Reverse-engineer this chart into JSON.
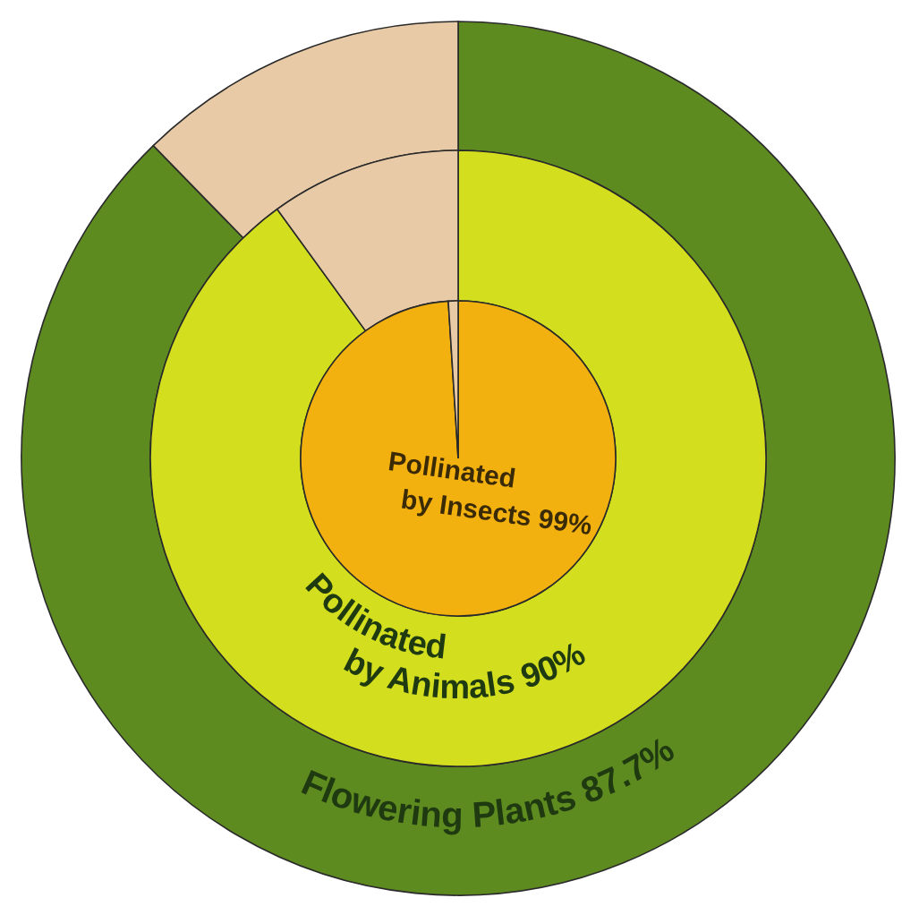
{
  "chart_data": [
    {
      "type": "donut",
      "categories": [
        "Flowering Plants",
        null
      ],
      "values": [
        87.7,
        12.3
      ],
      "colors": [
        "#5e8b1f",
        "#e8caa6"
      ],
      "value_labels": [
        "87.7%",
        null
      ]
    },
    {
      "type": "donut",
      "categories": [
        "Pollinated by Animals",
        null
      ],
      "values": [
        90,
        10
      ],
      "colors": [
        "#d3df1e",
        "#e8caa6"
      ],
      "value_labels": [
        "90%",
        null
      ]
    },
    {
      "type": "pie",
      "categories": [
        "Pollinated by Insects",
        null
      ],
      "values": [
        99,
        1
      ],
      "colors": [
        "#f2b10f",
        "#e8caa6"
      ],
      "value_labels": [
        "99%",
        null
      ]
    }
  ]
}
